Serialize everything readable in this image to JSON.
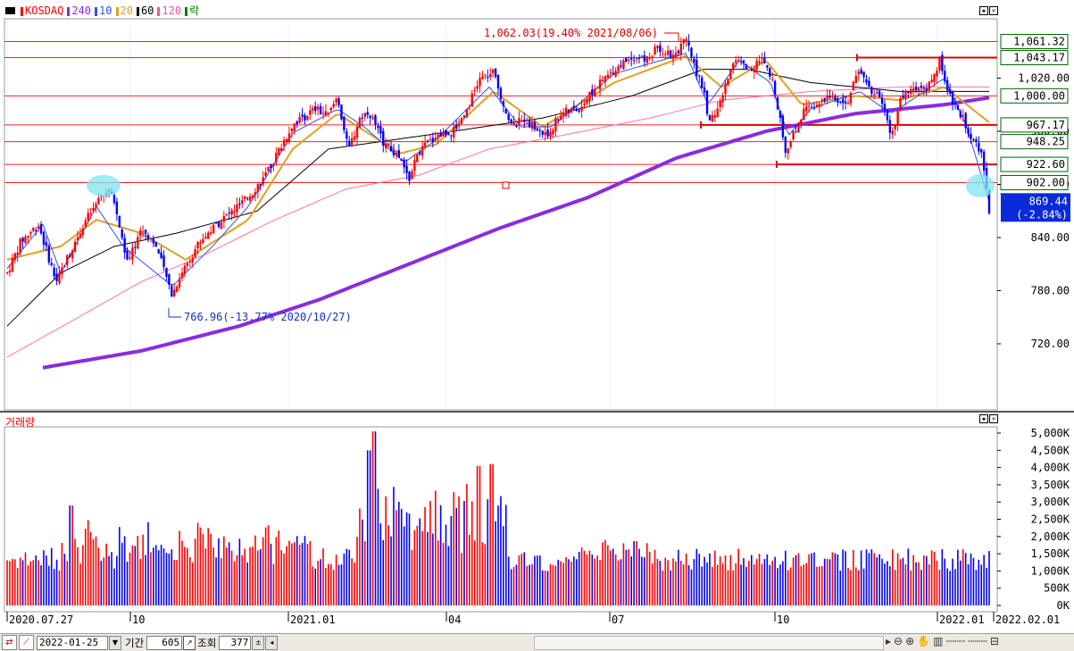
{
  "legend": {
    "items": [
      {
        "label": "KOSDAQ",
        "color": "#ff0000"
      },
      {
        "label": "240",
        "color": "#8a2be2"
      },
      {
        "label": "10",
        "color": "#2f4fff"
      },
      {
        "label": "20",
        "color": "#e0a020"
      },
      {
        "label": "60",
        "color": "#000000"
      },
      {
        "label": "120",
        "color": "#ff4fa0"
      },
      {
        "label": "락",
        "color": "#008000"
      }
    ]
  },
  "volume_legend": {
    "label": "거래량",
    "color": "#ff0000"
  },
  "price_axis": {
    "ticks": [
      "1,020.00",
      "960.00",
      "900.00",
      "840.00",
      "780.00",
      "720.00"
    ]
  },
  "volume_axis": {
    "ticks": [
      "5,000K",
      "4,500K",
      "4,000K",
      "3,500K",
      "3,000K",
      "2,500K",
      "2,000K",
      "1,500K",
      "1,000K",
      "500K",
      "0K"
    ]
  },
  "time_axis": {
    "labels": [
      "2020.07.27",
      "10",
      "2021.01",
      "04",
      "07",
      "10",
      "2022.01",
      "2022.02.01"
    ]
  },
  "level_labels": [
    "1,061.32",
    "1,043.17",
    "1,000.00",
    "967.17",
    "948.25",
    "922.60",
    "902.00"
  ],
  "current_price": {
    "value": "869.44",
    "change": "(-2.84%)"
  },
  "annotations": {
    "high": "1,062.03(19.40% 2021/08/06)",
    "low": "766.96(-13.77% 2020/10/27)"
  },
  "bottom_bar": {
    "date": "2022-01-25",
    "period_label": "기간",
    "period_value": "605",
    "query_label": "조회",
    "query_value": "377"
  },
  "chart_data": {
    "type": "candlestick",
    "x_range": [
      "2020-07-27",
      "2022-01-25"
    ],
    "y_range": [
      700,
      1080
    ],
    "horizontal_levels": [
      1061.32,
      1043.17,
      1000.0,
      967.17,
      948.25,
      922.6,
      902.0
    ],
    "price_path": [
      [
        0,
        800
      ],
      [
        15,
        835
      ],
      [
        35,
        855
      ],
      [
        55,
        790
      ],
      [
        85,
        855
      ],
      [
        112,
        895
      ],
      [
        120,
        880
      ],
      [
        135,
        810
      ],
      [
        150,
        850
      ],
      [
        165,
        835
      ],
      [
        185,
        775
      ],
      [
        195,
        800
      ],
      [
        215,
        835
      ],
      [
        240,
        860
      ],
      [
        265,
        880
      ],
      [
        290,
        910
      ],
      [
        305,
        940
      ],
      [
        320,
        968
      ],
      [
        345,
        985
      ],
      [
        360,
        978
      ],
      [
        370,
        1000
      ],
      [
        382,
        938
      ],
      [
        395,
        975
      ],
      [
        405,
        983
      ],
      [
        420,
        950
      ],
      [
        440,
        928
      ],
      [
        450,
        905
      ],
      [
        460,
        935
      ],
      [
        480,
        955
      ],
      [
        500,
        960
      ],
      [
        515,
        985
      ],
      [
        530,
        1020
      ],
      [
        545,
        1025
      ],
      [
        556,
        990
      ],
      [
        566,
        965
      ],
      [
        580,
        975
      ],
      [
        595,
        960
      ],
      [
        605,
        955
      ],
      [
        620,
        980
      ],
      [
        640,
        985
      ],
      [
        660,
        1010
      ],
      [
        680,
        1030
      ],
      [
        700,
        1045
      ],
      [
        715,
        1040
      ],
      [
        730,
        1055
      ],
      [
        745,
        1045
      ],
      [
        760,
        1062
      ],
      [
        770,
        1035
      ],
      [
        780,
        1005
      ],
      [
        787,
        968
      ],
      [
        800,
        995
      ],
      [
        815,
        1045
      ],
      [
        830,
        1030
      ],
      [
        845,
        1040
      ],
      [
        858,
        1015
      ],
      [
        865,
        980
      ],
      [
        872,
        935
      ],
      [
        882,
        960
      ],
      [
        895,
        990
      ],
      [
        910,
        990
      ],
      [
        925,
        1000
      ],
      [
        940,
        990
      ],
      [
        955,
        1030
      ],
      [
        965,
        1010
      ],
      [
        980,
        995
      ],
      [
        990,
        950
      ],
      [
        1000,
        995
      ],
      [
        1015,
        1010
      ],
      [
        1030,
        1005
      ],
      [
        1045,
        1040
      ],
      [
        1055,
        1000
      ],
      [
        1070,
        975
      ],
      [
        1082,
        950
      ],
      [
        1090,
        938
      ],
      [
        1097,
        900
      ],
      [
        1100,
        869.44
      ]
    ],
    "ma10": [
      [
        0,
        805
      ],
      [
        40,
        855
      ],
      [
        60,
        800
      ],
      [
        100,
        875
      ],
      [
        130,
        830
      ],
      [
        185,
        785
      ],
      [
        230,
        830
      ],
      [
        270,
        875
      ],
      [
        320,
        958
      ],
      [
        370,
        985
      ],
      [
        400,
        965
      ],
      [
        445,
        925
      ],
      [
        480,
        950
      ],
      [
        540,
        1010
      ],
      [
        575,
        965
      ],
      [
        610,
        965
      ],
      [
        680,
        1025
      ],
      [
        760,
        1048
      ],
      [
        785,
        990
      ],
      [
        820,
        1040
      ],
      [
        855,
        1015
      ],
      [
        875,
        955
      ],
      [
        900,
        985
      ],
      [
        955,
        1005
      ],
      [
        990,
        980
      ],
      [
        1050,
        1020
      ],
      [
        1075,
        965
      ],
      [
        1100,
        880
      ]
    ],
    "ma20": [
      [
        0,
        815
      ],
      [
        60,
        830
      ],
      [
        100,
        860
      ],
      [
        150,
        845
      ],
      [
        200,
        815
      ],
      [
        270,
        860
      ],
      [
        320,
        940
      ],
      [
        370,
        980
      ],
      [
        440,
        935
      ],
      [
        480,
        945
      ],
      [
        545,
        1005
      ],
      [
        600,
        965
      ],
      [
        680,
        1015
      ],
      [
        760,
        1045
      ],
      [
        800,
        1010
      ],
      [
        850,
        1040
      ],
      [
        890,
        990
      ],
      [
        950,
        1000
      ],
      [
        1000,
        995
      ],
      [
        1050,
        1010
      ],
      [
        1100,
        970
      ]
    ],
    "ma60": [
      [
        0,
        740
      ],
      [
        60,
        800
      ],
      [
        120,
        830
      ],
      [
        190,
        845
      ],
      [
        280,
        870
      ],
      [
        360,
        940
      ],
      [
        430,
        950
      ],
      [
        500,
        960
      ],
      [
        600,
        975
      ],
      [
        700,
        1000
      ],
      [
        780,
        1030
      ],
      [
        830,
        1030
      ],
      [
        900,
        1015
      ],
      [
        1000,
        1005
      ],
      [
        1100,
        1005
      ]
    ],
    "ma120": [
      [
        0,
        705
      ],
      [
        80,
        750
      ],
      [
        150,
        790
      ],
      [
        220,
        820
      ],
      [
        300,
        860
      ],
      [
        380,
        895
      ],
      [
        460,
        910
      ],
      [
        540,
        940
      ],
      [
        620,
        955
      ],
      [
        720,
        975
      ],
      [
        800,
        995
      ],
      [
        900,
        1005
      ],
      [
        1000,
        1010
      ],
      [
        1100,
        1010
      ]
    ],
    "ma240": [
      [
        40,
        693
      ],
      [
        150,
        712
      ],
      [
        260,
        740
      ],
      [
        350,
        770
      ],
      [
        450,
        810
      ],
      [
        550,
        850
      ],
      [
        650,
        885
      ],
      [
        750,
        930
      ],
      [
        850,
        960
      ],
      [
        950,
        980
      ],
      [
        1050,
        990
      ],
      [
        1100,
        998
      ]
    ],
    "volume_scale_max": 5000
  }
}
